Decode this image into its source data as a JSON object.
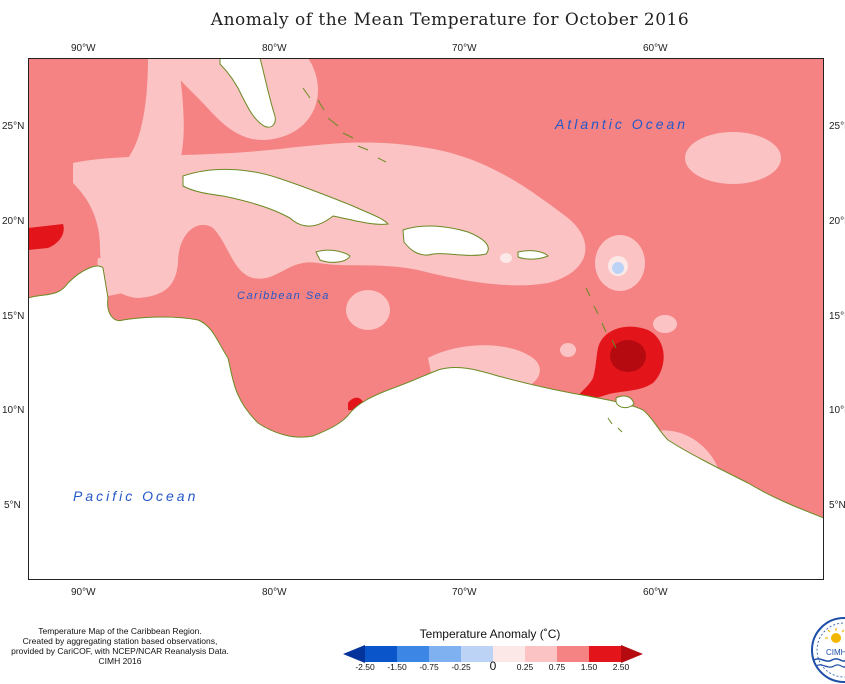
{
  "title": "Anomaly of the Mean Temperature for October 2016",
  "axes": {
    "top_lon": [
      "90°W",
      "80°W",
      "70°W",
      "60°W"
    ],
    "bottom_lon": [
      "90°W",
      "80°W",
      "70°W",
      "60°W"
    ],
    "left_lat": [
      "25°N",
      "20°N",
      "15°N",
      "10°N",
      "5°N"
    ],
    "right_lat": [
      "25°N",
      "20°N",
      "15°N",
      "10°N",
      "5°N"
    ]
  },
  "map_labels": {
    "atlantic": "Atlantic Ocean",
    "caribbean": "Caribbean Sea",
    "pacific": "Pacific Ocean"
  },
  "credits": [
    "Temperature Map of the Caribbean Region.",
    "Created by aggregating station based observations,",
    "provided by CariCOF, with NCEP/NCAR Reanalysis Data.",
    "CIMH 2016"
  ],
  "legend": {
    "title": "Temperature Anomaly (˚C)",
    "labels": [
      "-2.50",
      "-1.50",
      "-0.75",
      "-0.25",
      "0",
      "0.25",
      "0.75",
      "1.50",
      "2.50"
    ],
    "colors": {
      "below_-2.50": "#05339c",
      "-2.50_to_-1.50": "#0a55c9",
      "-1.50_to_-0.75": "#3c86e6",
      "-0.75_to_-0.25": "#7fb0f0",
      "-0.25_to_0": "#bcd3f6",
      "0_to_0.25": "#fde8e8",
      "0.25_to_0.75": "#fbc3c3",
      "0.75_to_1.50": "#f58383",
      "1.50_to_2.50": "#e3151a",
      "above_2.50": "#b50a10"
    }
  },
  "colors": {
    "land": "#ffffff",
    "coastline": "#6b8a24",
    "ocean_label": "#2458c8"
  },
  "logo": {
    "text": "CIMH",
    "icon": "sun-icon"
  }
}
